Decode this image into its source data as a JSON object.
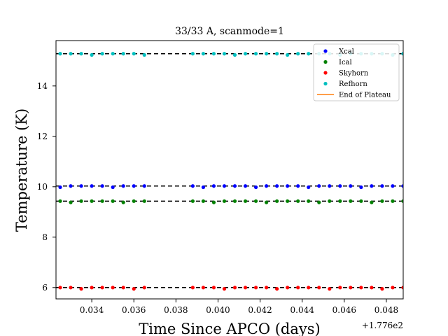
{
  "chart_data": {
    "type": "scatter",
    "title": "33/33 A, scanmode=1",
    "xlabel": "Time Since APCO (days)",
    "ylabel": "Temperature (K)",
    "x_offset_label": "+1.776e2",
    "xlim": [
      0.0323,
      0.0488
    ],
    "ylim": [
      5.55,
      15.8
    ],
    "xticks": [
      0.034,
      0.036,
      0.038,
      0.04,
      0.042,
      0.044,
      0.046,
      0.048
    ],
    "xtick_labels": [
      "0.034",
      "0.036",
      "0.038",
      "0.040",
      "0.042",
      "0.044",
      "0.046",
      "0.048"
    ],
    "yticks": [
      6,
      8,
      10,
      12,
      14
    ],
    "ytick_labels": [
      "6",
      "8",
      "10",
      "12",
      "14"
    ],
    "grid": false,
    "legend_position": "top-right",
    "x_segment_1": [
      0.0325,
      0.033,
      0.0335,
      0.034,
      0.0345,
      0.035,
      0.0355,
      0.036,
      0.0365
    ],
    "x_segment_2": [
      0.0388,
      0.0393,
      0.0398,
      0.0403,
      0.0408,
      0.0413,
      0.0418,
      0.0423,
      0.0428,
      0.0433,
      0.0438,
      0.0443,
      0.0448,
      0.0453,
      0.0458,
      0.0463,
      0.0468,
      0.0473,
      0.0478,
      0.0483,
      0.0488
    ],
    "series": [
      {
        "name": "Xcal",
        "color": "#0000ff",
        "level": 10.03
      },
      {
        "name": "Ical",
        "color": "#008000",
        "level": 9.43
      },
      {
        "name": "Skyhorn",
        "color": "#ff0000",
        "level": 6.0
      },
      {
        "name": "Refhorn",
        "color": "#00bfbf",
        "level": 15.28
      }
    ],
    "legend_line": {
      "name": "End of Plateau",
      "color": "#ff7f0e"
    },
    "reference_lines": [
      15.28,
      10.03,
      9.43,
      6.0
    ]
  }
}
